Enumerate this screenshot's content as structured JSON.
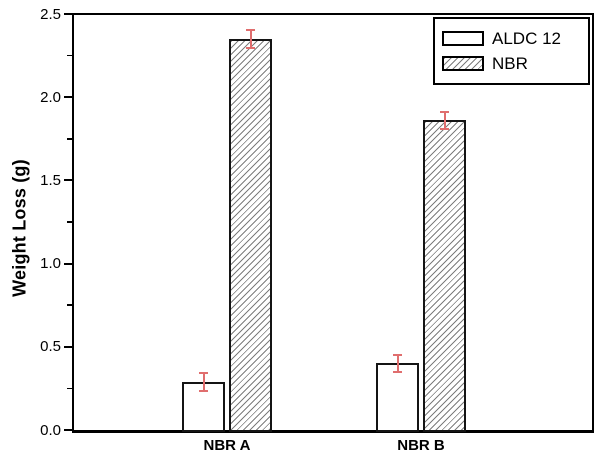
{
  "chart_data": {
    "type": "bar",
    "title": "",
    "ylabel": "Weight Loss (g)",
    "xlabel": "",
    "categories": [
      "NBR A",
      "NBR B"
    ],
    "series": [
      {
        "name": "ALDC 12",
        "pattern": "solid-white",
        "values": [
          0.29,
          0.4
        ],
        "errors": [
          0.06,
          0.055
        ]
      },
      {
        "name": "NBR",
        "pattern": "diagonal-hatch",
        "values": [
          2.35,
          1.86
        ],
        "errors": [
          0.06,
          0.055
        ]
      }
    ],
    "ylim": [
      0,
      2.5
    ],
    "ytick_labels": [
      "0.0",
      "0.5",
      "1.0",
      "1.5",
      "2.0",
      "2.5"
    ],
    "minor_tick_interval": 0.25,
    "grid": false,
    "legend_position": "top-right",
    "colors": {
      "bar_fill": "#ffffff",
      "bar_border": "#141414",
      "error_bar": "#e06e6e",
      "hatch_line": "#7d7d7d",
      "axis": "#000000",
      "text": "#000000",
      "background": "#ffffff"
    }
  }
}
